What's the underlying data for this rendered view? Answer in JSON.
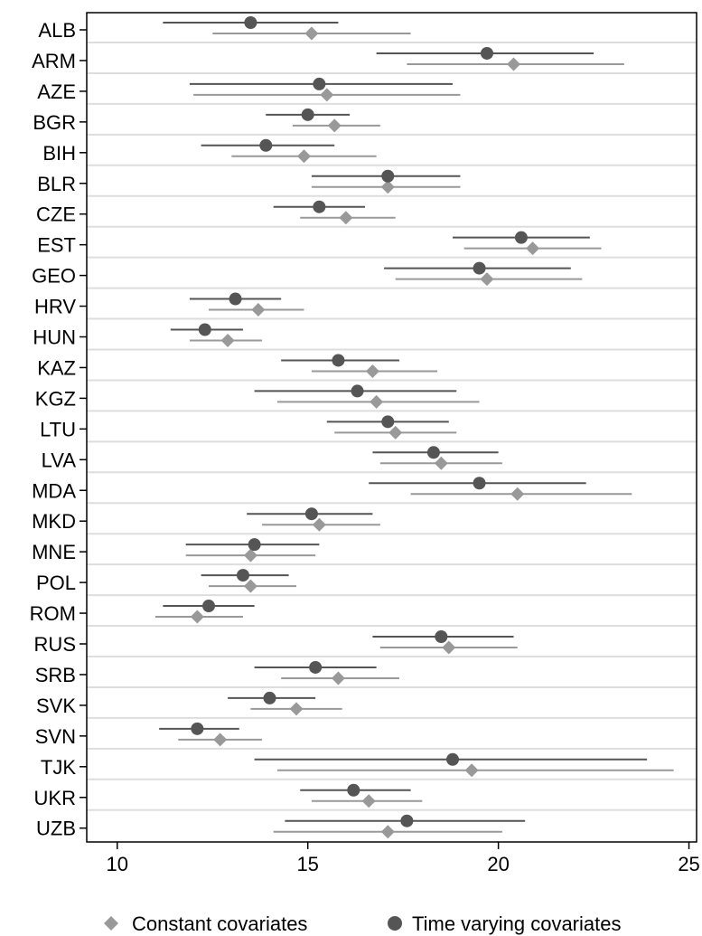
{
  "chart_data": {
    "type": "scatter",
    "title": "",
    "xlabel": "",
    "ylabel": "",
    "xlim": [
      9.2,
      25.2
    ],
    "xticks": [
      10,
      15,
      20,
      25
    ],
    "grid": "horizontal",
    "legend_position": "bottom",
    "categories": [
      "ALB",
      "ARM",
      "AZE",
      "BGR",
      "BIH",
      "BLR",
      "CZE",
      "EST",
      "GEO",
      "HRV",
      "HUN",
      "KAZ",
      "KGZ",
      "LTU",
      "LVA",
      "MDA",
      "MKD",
      "MNE",
      "POL",
      "ROM",
      "RUS",
      "SRB",
      "SVK",
      "SVN",
      "TJK",
      "UKR",
      "UZB"
    ],
    "series": [
      {
        "name": "Constant covariates",
        "marker": "diamond",
        "color": "#999999",
        "values": [
          15.1,
          20.4,
          15.5,
          15.7,
          14.9,
          17.1,
          16.0,
          20.9,
          19.7,
          13.7,
          12.9,
          16.7,
          16.8,
          17.3,
          18.5,
          20.5,
          15.3,
          13.5,
          13.5,
          12.1,
          18.7,
          15.8,
          14.7,
          12.7,
          19.3,
          16.6,
          17.1
        ],
        "lower": [
          12.5,
          17.6,
          12.0,
          14.6,
          13.0,
          15.1,
          14.8,
          19.1,
          17.3,
          12.4,
          11.9,
          15.1,
          14.2,
          15.7,
          16.9,
          17.7,
          13.8,
          11.8,
          12.4,
          11.0,
          16.9,
          14.3,
          13.5,
          11.6,
          14.2,
          15.1,
          14.1
        ],
        "upper": [
          17.7,
          23.3,
          19.0,
          16.9,
          16.8,
          19.0,
          17.3,
          22.7,
          22.2,
          14.9,
          13.8,
          18.4,
          19.5,
          18.9,
          20.1,
          23.5,
          16.9,
          15.2,
          14.7,
          13.3,
          20.5,
          17.4,
          15.9,
          13.8,
          24.6,
          18.0,
          20.1
        ]
      },
      {
        "name": "Time varying covariates",
        "marker": "circle",
        "color": "#555555",
        "values": [
          13.5,
          19.7,
          15.3,
          15.0,
          13.9,
          17.1,
          15.3,
          20.6,
          19.5,
          13.1,
          12.3,
          15.8,
          16.3,
          17.1,
          18.3,
          19.5,
          15.1,
          13.6,
          13.3,
          12.4,
          18.5,
          15.2,
          14.0,
          12.1,
          18.8,
          16.2,
          17.6
        ],
        "lower": [
          11.2,
          16.8,
          11.9,
          13.9,
          12.2,
          15.1,
          14.1,
          18.8,
          17.0,
          11.9,
          11.4,
          14.3,
          13.6,
          15.5,
          16.7,
          16.6,
          13.4,
          11.8,
          12.2,
          11.2,
          16.7,
          13.6,
          12.9,
          11.1,
          13.6,
          14.8,
          14.4
        ],
        "upper": [
          15.8,
          22.5,
          18.8,
          16.1,
          15.7,
          19.0,
          16.5,
          22.4,
          21.9,
          14.3,
          13.3,
          17.4,
          18.9,
          18.7,
          20.0,
          22.3,
          16.7,
          15.3,
          14.5,
          13.6,
          20.4,
          16.8,
          15.2,
          13.2,
          23.9,
          17.7,
          20.7
        ]
      }
    ]
  }
}
